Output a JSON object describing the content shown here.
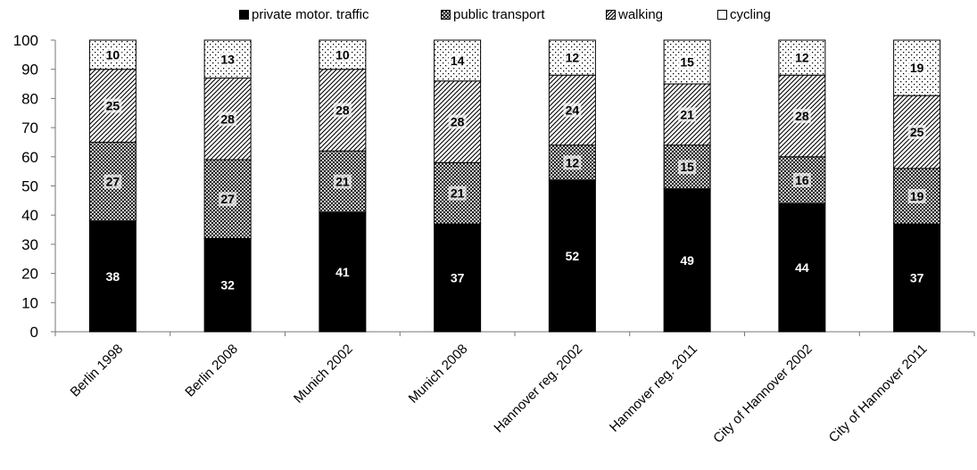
{
  "chart_data": {
    "type": "bar",
    "stacked": true,
    "categories": [
      "Berlin 1998",
      "Berlin 2008",
      "Munich 2002",
      "Munich 2008",
      "Hannover reg. 2002",
      "Hannover reg. 2011",
      "City of Hannover 2002",
      "City of Hannover 2011"
    ],
    "series": [
      {
        "name": "private motor. traffic",
        "values": [
          38,
          32,
          41,
          37,
          52,
          49,
          44,
          37
        ],
        "fill": "solid"
      },
      {
        "name": "public transport",
        "values": [
          27,
          27,
          21,
          21,
          12,
          15,
          16,
          19
        ],
        "fill": "crosshatch"
      },
      {
        "name": "walking",
        "values": [
          25,
          28,
          28,
          28,
          24,
          21,
          28,
          25
        ],
        "fill": "diagonal"
      },
      {
        "name": "cycling",
        "values": [
          10,
          13,
          10,
          14,
          12,
          15,
          12,
          19
        ],
        "fill": "dots"
      }
    ],
    "yticks": [
      0,
      10,
      20,
      30,
      40,
      50,
      60,
      70,
      80,
      90,
      100
    ],
    "ylim": [
      0,
      100
    ],
    "legend_position": "top-center",
    "grid": false
  }
}
